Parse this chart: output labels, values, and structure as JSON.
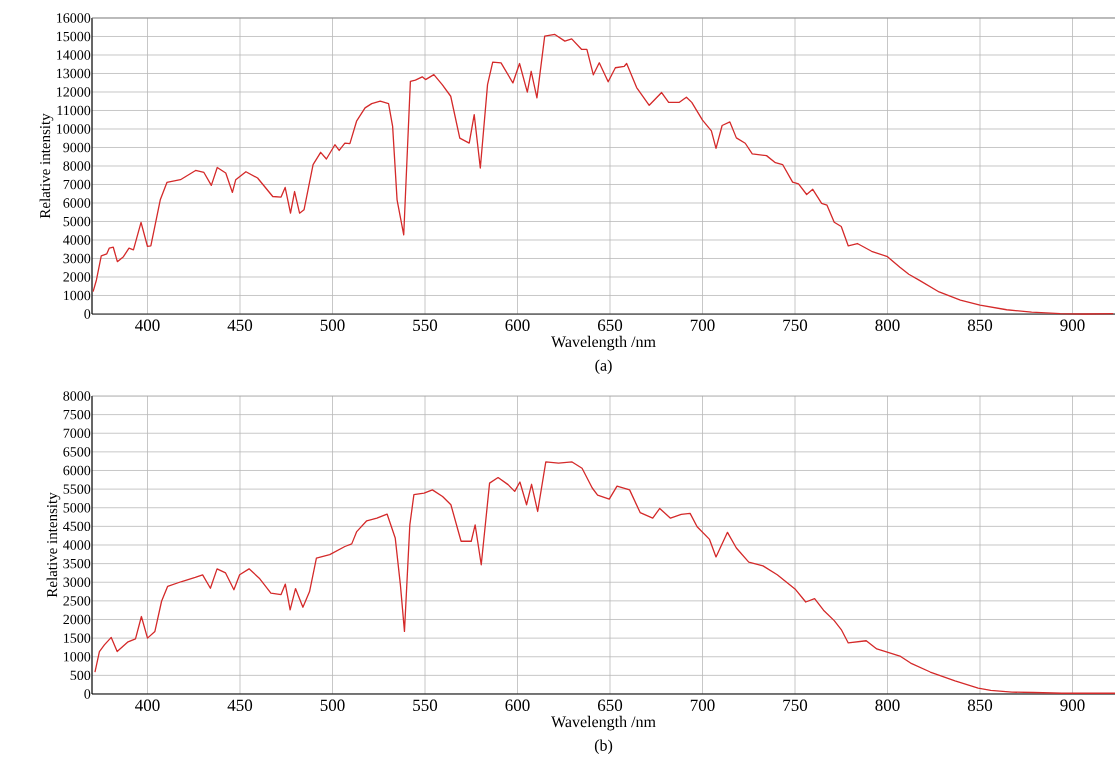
{
  "chart_data": [
    {
      "type": "line",
      "xlabel": "Wavelength /nm",
      "ylabel": "Relative intensity",
      "annotations": [
        "(a)"
      ],
      "xlim": [
        370,
        923
      ],
      "ylim": [
        0,
        16000
      ],
      "xticks": [
        400,
        450,
        500,
        550,
        600,
        650,
        700,
        750,
        800,
        850,
        900
      ],
      "yticks": [
        0,
        1000,
        2000,
        3000,
        4000,
        5000,
        6000,
        7000,
        8000,
        9000,
        10000,
        11000,
        12000,
        13000,
        14000,
        15000,
        16000
      ],
      "grid": true,
      "series": [
        {
          "color": "#d42a2a",
          "x": [
            370.6,
            372.4,
            375,
            378,
            379.3,
            381.5,
            383.7,
            387,
            390,
            392.4,
            396.5,
            400,
            401.8,
            406.9,
            410.5,
            417.8,
            426,
            430.5,
            434.5,
            437.7,
            442.3,
            445.9,
            447.7,
            453.2,
            459.5,
            467.7,
            472.2,
            474.4,
            477.3,
            479.5,
            482.2,
            484.6,
            489.5,
            493.6,
            496.7,
            501.3,
            503.6,
            506.7,
            509.4,
            513,
            517.6,
            521.2,
            525.8,
            530.3,
            532.5,
            534.9,
            538.5,
            542.1,
            544.8,
            548.5,
            550.3,
            554.8,
            559.3,
            563.9,
            568.8,
            573.9,
            576.6,
            579.9,
            583.8,
            586.6,
            591.1,
            597.5,
            601.1,
            605.3,
            607.4,
            610.5,
            614.7,
            620.2,
            625.6,
            629.3,
            634.7,
            637.5,
            641,
            644.2,
            649,
            652.9,
            657.7,
            659,
            664.4,
            671.2,
            677.9,
            681.7,
            687.5,
            691.3,
            694.2,
            700,
            704.8,
            707.3,
            710.6,
            714.8,
            718.3,
            723.1,
            726.9,
            734.6,
            739.4,
            743.3,
            748.7,
            751.9,
            756.3,
            759.6,
            764.4,
            767.3,
            771.2,
            775,
            778.8,
            783.7,
            791.4,
            800,
            806.7,
            811.5,
            817.3,
            827.9,
            839.4,
            850,
            864.4,
            877.9,
            893.3,
            906.7,
            922
          ],
          "values": [
            1210,
            1840,
            3140,
            3250,
            3560,
            3610,
            2830,
            3100,
            3560,
            3470,
            4950,
            3650,
            3680,
            6170,
            7110,
            7260,
            7760,
            7650,
            6950,
            7920,
            7620,
            6570,
            7260,
            7690,
            7350,
            6350,
            6320,
            6840,
            5450,
            6620,
            5450,
            5630,
            8070,
            8740,
            8380,
            9150,
            8840,
            9240,
            9210,
            10420,
            11140,
            11370,
            11500,
            11370,
            10140,
            6170,
            4280,
            12580,
            12640,
            12820,
            12670,
            12940,
            12400,
            11770,
            9510,
            9240,
            10780,
            7890,
            12400,
            13610,
            13570,
            12490,
            13540,
            11990,
            13120,
            11680,
            15020,
            15110,
            14750,
            14870,
            14300,
            14300,
            12930,
            13580,
            12550,
            13310,
            13390,
            13540,
            12240,
            11280,
            11970,
            11440,
            11440,
            11720,
            11440,
            10480,
            9900,
            8950,
            10190,
            10380,
            9520,
            9230,
            8660,
            8560,
            8180,
            8080,
            7130,
            7030,
            6460,
            6740,
            5980,
            5880,
            4960,
            4730,
            3680,
            3810,
            3390,
            3100,
            2530,
            2150,
            1820,
            1190,
            750,
            480,
            230,
            100,
            20,
            0,
            20
          ]
        }
      ]
    },
    {
      "type": "line",
      "xlabel": "Wavelength /nm",
      "ylabel": "Relative intensity",
      "annotations": [
        "(b)"
      ],
      "xlim": [
        370,
        923
      ],
      "ylim": [
        0,
        8000
      ],
      "xticks": [
        400,
        450,
        500,
        550,
        600,
        650,
        700,
        750,
        800,
        850,
        900
      ],
      "yticks": [
        0,
        500,
        1000,
        1500,
        2000,
        2500,
        3000,
        3500,
        4000,
        4500,
        5000,
        5500,
        6000,
        6500,
        7000,
        7500,
        8000
      ],
      "grid": true,
      "series": [
        {
          "color": "#d42a2a",
          "x": [
            371.6,
            374,
            376.7,
            380.4,
            383.6,
            389.5,
            393.5,
            396.7,
            400,
            404,
            407.6,
            410.9,
            418.5,
            425.8,
            429.8,
            434,
            437.6,
            442.2,
            446.7,
            449.8,
            454.9,
            460.4,
            466.7,
            472.2,
            474.5,
            477.1,
            480,
            484,
            487.6,
            491.3,
            498.5,
            506.7,
            510.4,
            513.1,
            518.5,
            524,
            529.5,
            533.9,
            536.7,
            538.9,
            541.8,
            544,
            549.5,
            554,
            559.5,
            564,
            569.5,
            575,
            577.1,
            580.4,
            584.9,
            589.5,
            594.9,
            598.5,
            601.3,
            604.9,
            607.6,
            610.9,
            615.3,
            622.2,
            629.5,
            634.9,
            640.4,
            643.3,
            649.6,
            653.8,
            660.6,
            666.3,
            673.1,
            676.9,
            682.7,
            688.5,
            693.3,
            697.1,
            703.8,
            707.3,
            713.5,
            718.3,
            725,
            732.7,
            740.4,
            750,
            755.8,
            760.6,
            765.4,
            771.2,
            775,
            778.8,
            788.5,
            794.2,
            799,
            806.7,
            812.5,
            823.1,
            836.5,
            849,
            855.8,
            867.3,
            878.8,
            894.2,
            907.7,
            923
          ],
          "values": [
            590,
            1140,
            1320,
            1520,
            1140,
            1400,
            1480,
            2080,
            1500,
            1680,
            2490,
            2890,
            3020,
            3130,
            3200,
            2840,
            3360,
            3250,
            2800,
            3200,
            3360,
            3110,
            2710,
            2670,
            2950,
            2260,
            2830,
            2330,
            2750,
            3650,
            3740,
            3960,
            4030,
            4360,
            4650,
            4720,
            4830,
            4190,
            2930,
            1680,
            4540,
            5350,
            5390,
            5480,
            5300,
            5080,
            4100,
            4100,
            4540,
            3470,
            5660,
            5810,
            5620,
            5440,
            5690,
            5080,
            5630,
            4900,
            6230,
            6200,
            6230,
            6060,
            5530,
            5340,
            5230,
            5580,
            5480,
            4870,
            4720,
            4980,
            4720,
            4820,
            4850,
            4490,
            4150,
            3680,
            4340,
            3920,
            3540,
            3440,
            3200,
            2820,
            2470,
            2560,
            2250,
            1970,
            1730,
            1370,
            1430,
            1210,
            1140,
            1020,
            830,
            590,
            350,
            160,
            100,
            50,
            40,
            20,
            20,
            20
          ]
        }
      ]
    }
  ]
}
